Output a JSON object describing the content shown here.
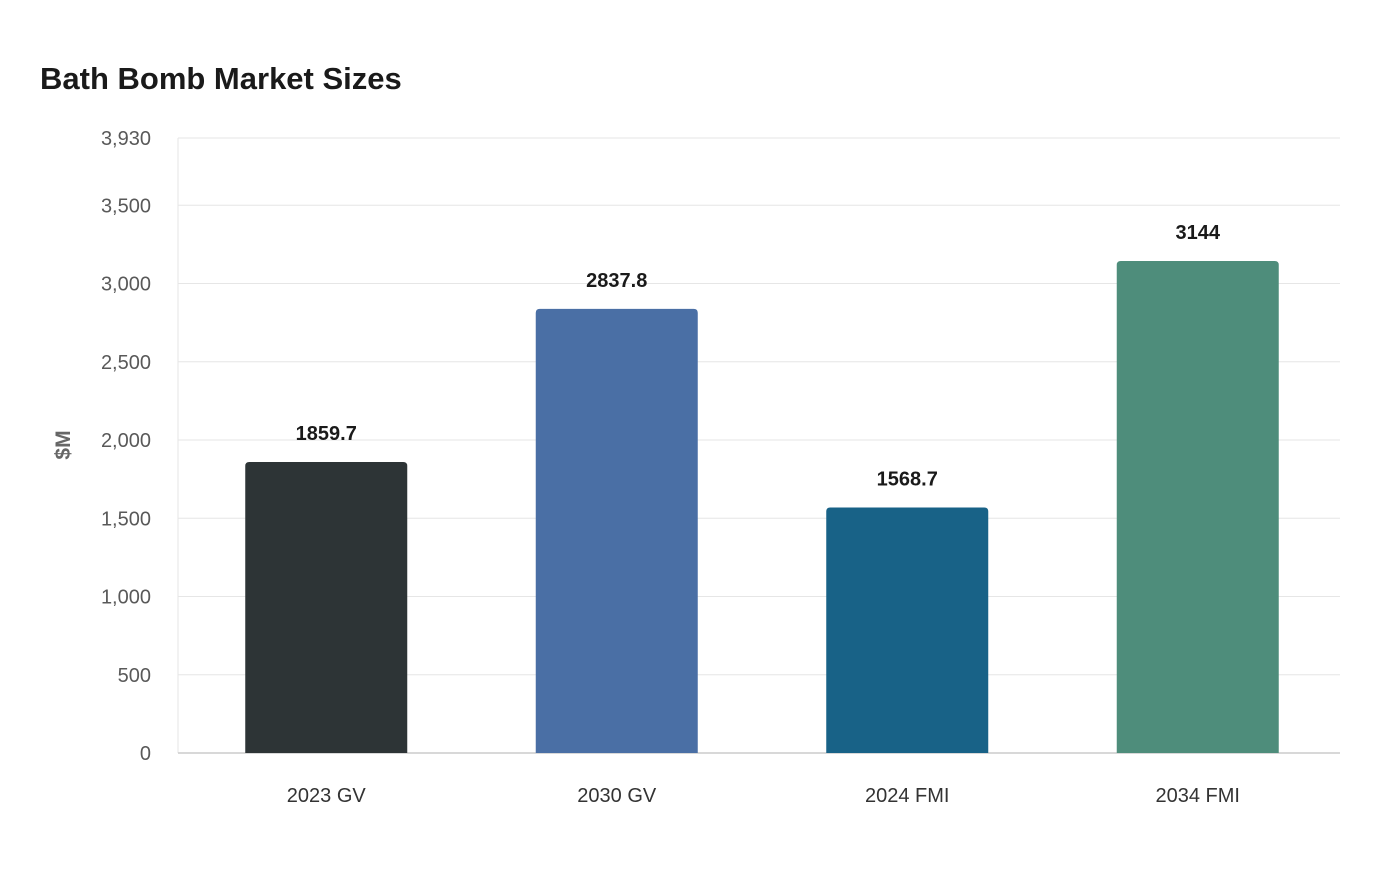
{
  "chart_data": {
    "type": "bar",
    "title": "Bath Bomb Market Sizes",
    "xlabel": "",
    "ylabel": "$M",
    "categories": [
      "2023 GV",
      "2030 GV",
      "2024 FMI",
      "2034 FMI"
    ],
    "values": [
      1859.7,
      2837.8,
      1568.7,
      3144
    ],
    "value_labels": [
      "1859.7",
      "2837.8",
      "1568.7",
      "3144"
    ],
    "colors": [
      "#2d3436",
      "#4a6fa5",
      "#186287",
      "#4e8d7b"
    ],
    "ylim": [
      0,
      3930
    ],
    "yticks": [
      0,
      500,
      1000,
      1500,
      2000,
      2500,
      3000,
      3500,
      3930
    ],
    "ytick_labels": [
      "0",
      "500",
      "1,000",
      "1,500",
      "2,000",
      "2,500",
      "3,000",
      "3,500",
      "3,930"
    ],
    "grid": true,
    "legend": "none"
  }
}
